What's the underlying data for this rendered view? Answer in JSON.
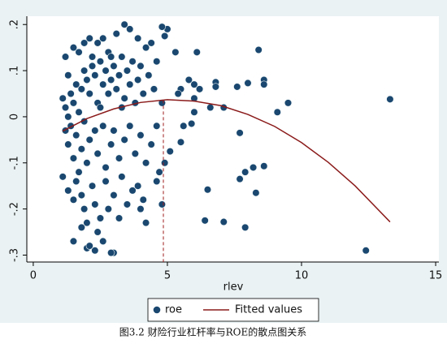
{
  "chart_data": {
    "type": "scatter",
    "xlabel": "rlev",
    "caption": "图3.2  财险行业杠杆率与ROE的散点图关系",
    "xlim": [
      -0.24,
      15.12
    ],
    "ylim": [
      -0.315,
      0.218
    ],
    "xticks": [
      0,
      5,
      10,
      15
    ],
    "yticks": [
      {
        "value": -0.3,
        "label": "-.3"
      },
      {
        "value": -0.2,
        "label": "-.2"
      },
      {
        "value": -0.1,
        "label": "-.1"
      },
      0,
      {
        "value": 0.1,
        "label": ".1"
      },
      {
        "value": 0.2,
        "label": ".2"
      }
    ],
    "vline": {
      "x": 4.85,
      "color": "#a01c1c"
    },
    "legend": "bottom",
    "series": [
      {
        "name": "roe",
        "type": "scatter",
        "color": "#1a476f",
        "x": [
          13.3,
          12.4,
          9.5,
          9.1,
          8.4,
          8.6,
          8.6,
          8.0,
          7.6,
          7.7,
          7.7,
          7.9,
          8.2,
          8.6,
          8.3,
          7.9,
          7.1,
          6.4,
          6.5,
          6.8,
          6.8,
          6.2,
          6.0,
          5.8,
          5.5,
          6.0,
          5.9,
          5.6,
          5.5,
          5.4,
          5.1,
          4.9,
          4.8,
          4.7,
          6.1,
          5.3,
          5.0,
          4.8,
          4.9,
          6.0,
          6.6,
          7.1,
          4.6,
          4.2,
          4.0,
          3.0,
          2.9,
          2.3,
          2.0,
          1.2,
          1.3,
          1.5,
          1.7,
          1.9,
          2.1,
          2.4,
          2.6,
          2.8,
          3.1,
          3.4,
          3.6,
          3.9,
          4.2,
          4.4,
          1.1,
          1.2,
          1.3,
          1.4,
          1.5,
          1.6,
          1.7,
          1.8,
          1.9,
          2.0,
          2.1,
          2.2,
          2.3,
          2.4,
          2.5,
          2.6,
          2.7,
          2.8,
          2.9,
          3.0,
          3.1,
          3.2,
          3.3,
          3.4,
          3.5,
          3.6,
          3.7,
          3.8,
          3.9,
          4.0,
          4.1,
          4.3,
          4.5,
          4.6,
          4.8,
          2.2,
          2.5,
          2.9,
          3.3,
          1.2,
          1.3,
          1.4,
          1.5,
          1.6,
          1.7,
          1.8,
          1.9,
          2.0,
          2.1,
          2.3,
          2.4,
          2.6,
          2.7,
          2.9,
          3.0,
          3.2,
          3.4,
          3.6,
          3.8,
          4.0,
          4.2,
          4.4,
          4.6,
          1.1,
          1.3,
          1.5,
          1.6,
          1.8,
          1.9,
          2.0,
          2.2,
          2.3,
          2.4,
          2.5,
          2.7,
          2.8,
          3.0,
          3.2,
          3.3,
          3.5,
          3.7,
          1.5,
          1.8,
          2.1,
          2.6,
          3.9,
          4.1
        ],
        "values": [
          0.038,
          -0.29,
          0.03,
          0.01,
          0.145,
          0.08,
          0.07,
          0.073,
          0.065,
          -0.035,
          -0.135,
          -0.12,
          -0.11,
          -0.107,
          -0.165,
          -0.24,
          -0.228,
          -0.225,
          -0.158,
          0.075,
          0.065,
          0.06,
          0.07,
          0.08,
          0.06,
          0.01,
          -0.015,
          -0.02,
          -0.055,
          0.05,
          -0.075,
          -0.1,
          -0.19,
          -0.12,
          0.14,
          0.14,
          0.19,
          0.195,
          0.175,
          0.04,
          0.02,
          0.02,
          -0.14,
          -0.23,
          -0.2,
          -0.295,
          -0.295,
          -0.29,
          -0.285,
          0.13,
          0.09,
          0.15,
          0.14,
          0.16,
          0.17,
          0.16,
          0.17,
          0.14,
          0.18,
          0.2,
          0.19,
          0.17,
          0.15,
          0.16,
          0.04,
          0.02,
          0.0,
          0.05,
          0.03,
          0.07,
          0.01,
          0.06,
          0.1,
          0.08,
          0.05,
          0.11,
          0.09,
          0.03,
          0.12,
          0.07,
          0.1,
          0.05,
          0.08,
          0.11,
          0.06,
          0.09,
          0.13,
          0.04,
          0.1,
          0.07,
          0.12,
          0.03,
          0.08,
          0.11,
          0.05,
          0.09,
          0.06,
          0.12,
          0.03,
          0.13,
          0.02,
          0.13,
          0.02,
          -0.03,
          -0.06,
          -0.02,
          -0.09,
          -0.04,
          -0.12,
          -0.07,
          -0.01,
          -0.1,
          -0.05,
          -0.03,
          -0.08,
          -0.02,
          -0.11,
          -0.06,
          -0.03,
          -0.09,
          -0.05,
          -0.02,
          -0.08,
          -0.04,
          -0.1,
          -0.06,
          -0.02,
          -0.13,
          -0.16,
          -0.18,
          -0.14,
          -0.17,
          -0.2,
          -0.23,
          -0.15,
          -0.19,
          -0.25,
          -0.22,
          -0.14,
          -0.2,
          -0.17,
          -0.22,
          -0.13,
          -0.19,
          -0.16,
          -0.27,
          -0.24,
          -0.28,
          -0.27,
          -0.15,
          -0.18
        ]
      },
      {
        "name": "Fitted values",
        "type": "line",
        "color": "#8b1a1a",
        "x": [
          1.1,
          2,
          3,
          4,
          5,
          6,
          7,
          8,
          9,
          10,
          11,
          12,
          13.3
        ],
        "values": [
          -0.031,
          -0.004,
          0.017,
          0.031,
          0.037,
          0.034,
          0.024,
          0.005,
          -0.021,
          -0.056,
          -0.099,
          -0.15,
          -0.228
        ]
      }
    ]
  }
}
